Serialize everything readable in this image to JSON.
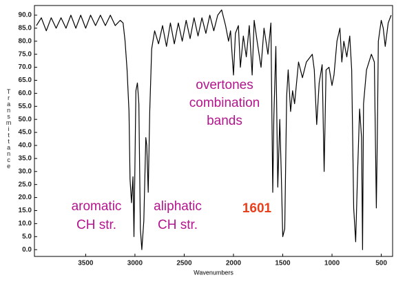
{
  "chart_data": {
    "type": "line",
    "xlabel": "Wavenumbers",
    "ylabel": "Transmittance",
    "x": [
      4000,
      3950,
      3900,
      3850,
      3800,
      3750,
      3700,
      3650,
      3600,
      3550,
      3500,
      3450,
      3400,
      3350,
      3300,
      3250,
      3200,
      3150,
      3120,
      3100,
      3080,
      3060,
      3050,
      3035,
      3020,
      3010,
      3000,
      2990,
      2975,
      2960,
      2945,
      2930,
      2910,
      2890,
      2880,
      2865,
      2850,
      2830,
      2800,
      2760,
      2720,
      2680,
      2640,
      2600,
      2560,
      2520,
      2480,
      2440,
      2400,
      2360,
      2320,
      2280,
      2240,
      2200,
      2160,
      2120,
      2080,
      2050,
      2030,
      2000,
      1980,
      1950,
      1930,
      1900,
      1870,
      1840,
      1810,
      1790,
      1760,
      1720,
      1690,
      1650,
      1620,
      1601,
      1590,
      1570,
      1550,
      1530,
      1515,
      1500,
      1480,
      1460,
      1445,
      1420,
      1400,
      1380,
      1340,
      1300,
      1260,
      1200,
      1180,
      1155,
      1130,
      1100,
      1080,
      1060,
      1030,
      1000,
      980,
      950,
      920,
      900,
      880,
      850,
      820,
      800,
      780,
      760,
      740,
      720,
      700,
      690,
      680,
      650,
      600,
      570,
      550,
      540,
      530,
      500,
      480,
      460,
      430,
      400
    ],
    "series": [
      {
        "color": "#000000",
        "values": [
          86,
          89,
          84,
          89,
          85,
          89,
          85,
          90,
          85,
          90,
          85,
          90,
          86,
          90,
          86,
          90,
          86,
          88,
          87,
          80,
          69,
          53,
          27,
          18,
          28,
          5,
          32,
          61,
          64,
          56,
          8,
          0,
          11,
          43,
          40,
          22,
          53,
          77,
          84,
          79,
          86,
          78,
          87,
          79,
          87,
          80,
          88,
          81,
          89,
          82,
          89,
          83,
          90,
          84,
          90,
          92,
          86,
          80,
          84,
          67,
          83,
          86,
          70,
          82,
          74,
          86,
          67,
          88,
          80,
          70,
          85,
          75,
          87,
          22,
          51,
          78,
          24,
          50,
          30,
          5,
          8,
          59,
          69,
          53,
          61,
          56,
          72,
          66,
          72,
          75,
          69,
          48,
          64,
          71,
          30,
          69,
          70,
          63,
          67,
          80,
          85,
          72,
          80,
          74,
          82,
          69,
          16,
          3,
          30,
          54,
          43,
          0,
          56,
          69,
          75,
          72,
          16,
          43,
          80,
          88,
          85,
          78,
          87,
          90
        ]
      }
    ],
    "xlim": [
      4020,
      385
    ],
    "ylim": [
      -2.6,
      93.7
    ],
    "xticks": [
      3500,
      3000,
      2500,
      2000,
      1500,
      1000,
      500
    ],
    "yticks": [
      {
        "value": 0,
        "label": "0.0"
      },
      {
        "value": 5,
        "label": "5.0"
      },
      {
        "value": 10,
        "label": "10.0"
      },
      {
        "value": 15,
        "label": "15.0"
      },
      {
        "value": 20,
        "label": "20.0"
      },
      {
        "value": 25,
        "label": "25.0"
      },
      {
        "value": 30,
        "label": "30.0"
      },
      {
        "value": 35,
        "label": "35.0"
      },
      {
        "value": 40,
        "label": "40.0"
      },
      {
        "value": 45,
        "label": "45.0"
      },
      {
        "value": 50,
        "label": "50.0"
      },
      {
        "value": 55,
        "label": "55.0"
      },
      {
        "value": 60,
        "label": "60.0"
      },
      {
        "value": 65,
        "label": "65.0"
      },
      {
        "value": 70,
        "label": "70.0"
      },
      {
        "value": 75,
        "label": "75.0"
      },
      {
        "value": 80,
        "label": "80.0"
      },
      {
        "value": 85,
        "label": "85.0"
      },
      {
        "value": 90,
        "label": "90.0"
      }
    ],
    "annotations": [
      {
        "lines": [
          "overtones",
          "combination",
          "bands"
        ],
        "color": "#b3158c"
      },
      {
        "lines": [
          "aromatic",
          "CH str."
        ],
        "color": "#b3158c"
      },
      {
        "lines": [
          "aliphatic",
          "CH str."
        ],
        "color": "#b3158c"
      },
      {
        "lines": [
          "1601"
        ],
        "color": "#e8401c",
        "bold": true
      }
    ]
  }
}
